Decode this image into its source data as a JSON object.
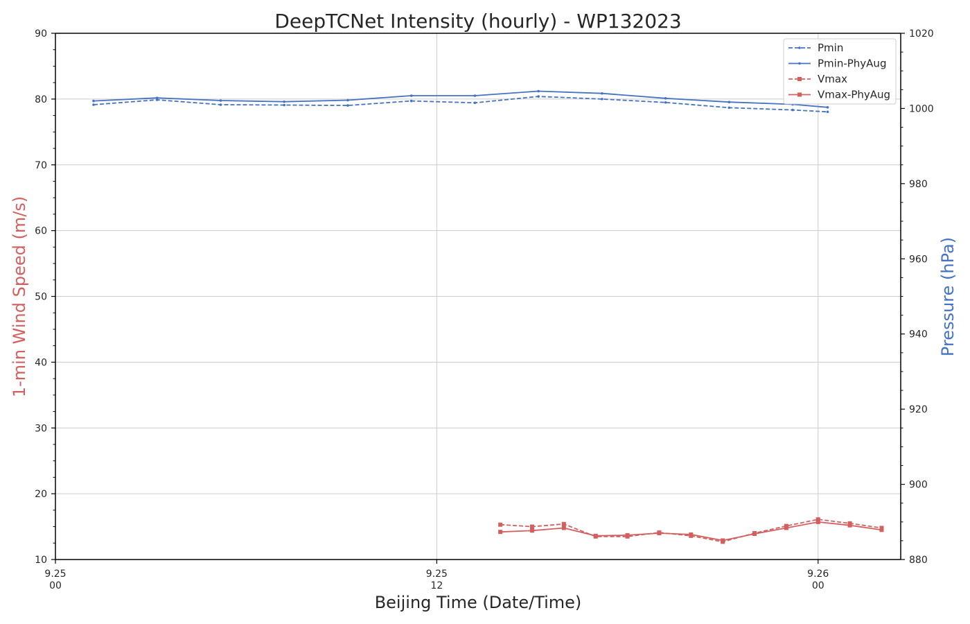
{
  "chart_data": {
    "type": "line",
    "title": "DeepTCNet Intensity (hourly) - WP132023",
    "xlabel": "Beijing Time (Date/Time)",
    "ylabel_left": "1-min Wind Speed (m/s)",
    "ylabel_right": "Pressure (hPa)",
    "x_ticks": [
      {
        "hours": 0,
        "date": "9.25",
        "time": "00"
      },
      {
        "hours": 12,
        "date": "9.25",
        "time": "12"
      },
      {
        "hours": 24,
        "date": "9.26",
        "time": "00"
      }
    ],
    "xlim_hours": [
      0,
      26.6
    ],
    "ylim_left": [
      10,
      90
    ],
    "ylim_right": [
      880,
      1020
    ],
    "y_ticks_left": [
      "10",
      "20",
      "30",
      "40",
      "50",
      "60",
      "70",
      "80",
      "90"
    ],
    "y_ticks_right": [
      "880",
      "900",
      "920",
      "940",
      "960",
      "980",
      "1000",
      "1020"
    ],
    "grid": true,
    "legend_position": "top-right",
    "colors": {
      "pressure": "#4472c4",
      "wind": "#d45f5f"
    },
    "series": [
      {
        "name": "Pmin",
        "axis": "right",
        "style": "dashed",
        "x": [
          1.2,
          3.2,
          5.2,
          7.2,
          9.2,
          11.2,
          13.2,
          15.2,
          17.2,
          19.2,
          21.2,
          23.2,
          24.3
        ],
        "values": [
          1001.0,
          1002.3,
          1001.0,
          1000.9,
          1000.8,
          1002.0,
          1001.5,
          1003.2,
          1002.5,
          1001.6,
          1000.2,
          999.6,
          999.1
        ]
      },
      {
        "name": "Pmin-PhyAug",
        "axis": "right",
        "style": "solid",
        "x": [
          1.2,
          3.2,
          5.2,
          7.2,
          9.2,
          11.2,
          13.2,
          15.2,
          17.2,
          19.2,
          21.2,
          23.2,
          24.3
        ],
        "values": [
          1002.0,
          1002.8,
          1002.1,
          1001.8,
          1002.2,
          1003.4,
          1003.4,
          1004.6,
          1004.0,
          1002.7,
          1001.7,
          1001.1,
          1000.3
        ]
      },
      {
        "name": "Vmax",
        "axis": "left",
        "style": "dashed",
        "x": [
          14.0,
          15.0,
          16.0,
          17.0,
          18.0,
          19.0,
          20.0,
          21.0,
          22.0,
          23.0,
          24.0,
          25.0,
          26.0
        ],
        "values": [
          15.3,
          15.0,
          15.4,
          13.5,
          13.5,
          14.1,
          13.6,
          12.7,
          14.0,
          15.1,
          16.1,
          15.5,
          14.8
        ]
      },
      {
        "name": "Vmax-PhyAug",
        "axis": "left",
        "style": "solid",
        "x": [
          14.0,
          15.0,
          16.0,
          17.0,
          18.0,
          19.0,
          20.0,
          21.0,
          22.0,
          23.0,
          24.0,
          25.0,
          26.0
        ],
        "values": [
          14.2,
          14.4,
          14.8,
          13.6,
          13.7,
          14.0,
          13.8,
          12.9,
          13.9,
          14.8,
          15.7,
          15.2,
          14.5
        ]
      }
    ]
  }
}
